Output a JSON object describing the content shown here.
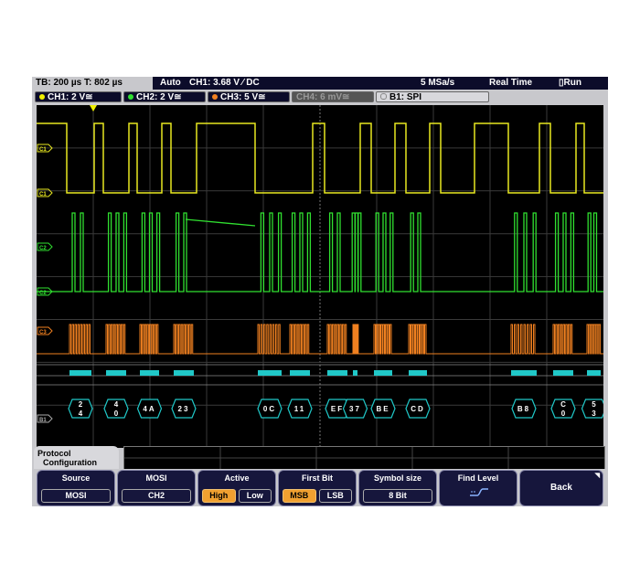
{
  "status": {
    "timebase": "TB: 200 µs  T: 802 µs",
    "trigger_mode": "Auto",
    "trigger_level": "CH1: 3.68 V ⁄ DC",
    "sample_rate": "5 MSa/s",
    "acq_mode": "Real Time",
    "run_state": "Run"
  },
  "channels": [
    {
      "label": "CH1: 2 V≅",
      "color": "#f0f000",
      "active": true
    },
    {
      "label": "CH2: 2 V≅",
      "color": "#30e030",
      "active": true
    },
    {
      "label": "CH3: 5 V≅",
      "color": "#f08020",
      "active": true
    },
    {
      "label": "CH4: 6 mV≅",
      "color": "#888888",
      "active": false
    },
    {
      "label": "B1:  SPI",
      "color": "#aaaaaa",
      "active": true
    }
  ],
  "trace_labels": [
    "C1",
    "C1",
    "C2",
    "C2",
    "C3",
    "B1"
  ],
  "bus_values": [
    "24",
    "40",
    "4A",
    "23",
    "0C",
    "11",
    "EF",
    "37",
    "BE",
    "CD",
    "B8",
    "C0",
    "53"
  ],
  "menu_tab": {
    "line1": "Protocol",
    "line2": "Configuration"
  },
  "softkeys": [
    {
      "title": "Source",
      "options": [
        "MOSI"
      ],
      "selected": 0
    },
    {
      "title": "MOSI",
      "options": [
        "CH2"
      ],
      "selected": 0
    },
    {
      "title": "Active",
      "options": [
        "High",
        "Low"
      ],
      "selected": 0
    },
    {
      "title": "First Bit",
      "options": [
        "MSB",
        "LSB"
      ],
      "selected": 0
    },
    {
      "title": "Symbol size",
      "options": [
        "8 Bit"
      ],
      "selected": 0
    },
    {
      "title": "Find Level",
      "icon": "find-level-icon"
    },
    {
      "title": "Back"
    }
  ]
}
